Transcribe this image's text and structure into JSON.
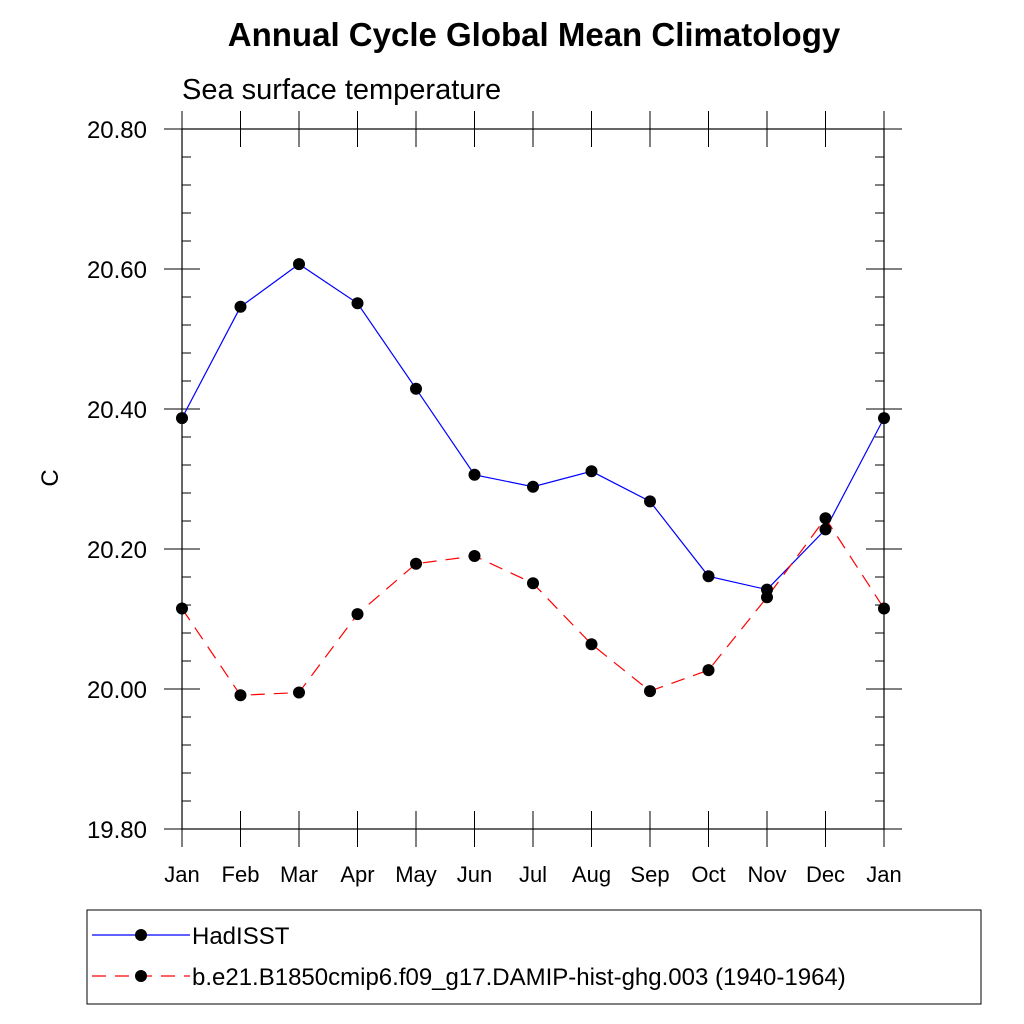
{
  "chart_data": {
    "type": "line",
    "title": "Annual Cycle Global Mean Climatology",
    "subtitle": "Sea surface temperature",
    "xlabel": "",
    "ylabel": "C",
    "categories": [
      "Jan",
      "Feb",
      "Mar",
      "Apr",
      "May",
      "Jun",
      "Jul",
      "Aug",
      "Sep",
      "Oct",
      "Nov",
      "Dec",
      "Jan"
    ],
    "ylim": [
      19.8,
      20.8
    ],
    "yticks": [
      "19.80",
      "20.00",
      "20.20",
      "20.40",
      "20.60",
      "20.80"
    ],
    "series": [
      {
        "name": "HadISST",
        "color": "#0000ff",
        "dash": "solid",
        "values": [
          20.387,
          20.546,
          20.607,
          20.551,
          20.429,
          20.306,
          20.289,
          20.311,
          20.268,
          20.161,
          20.142,
          20.228,
          20.387
        ]
      },
      {
        "name": "b.e21.B1850cmip6.f09_g17.DAMIP-hist-ghg.003 (1940-1964)",
        "color": "#ff0000",
        "dash": "dashed",
        "values": [
          20.115,
          19.991,
          19.995,
          20.107,
          20.179,
          20.19,
          20.151,
          20.064,
          19.997,
          20.027,
          20.131,
          20.244,
          20.115
        ]
      }
    ],
    "legend": "bottom"
  }
}
